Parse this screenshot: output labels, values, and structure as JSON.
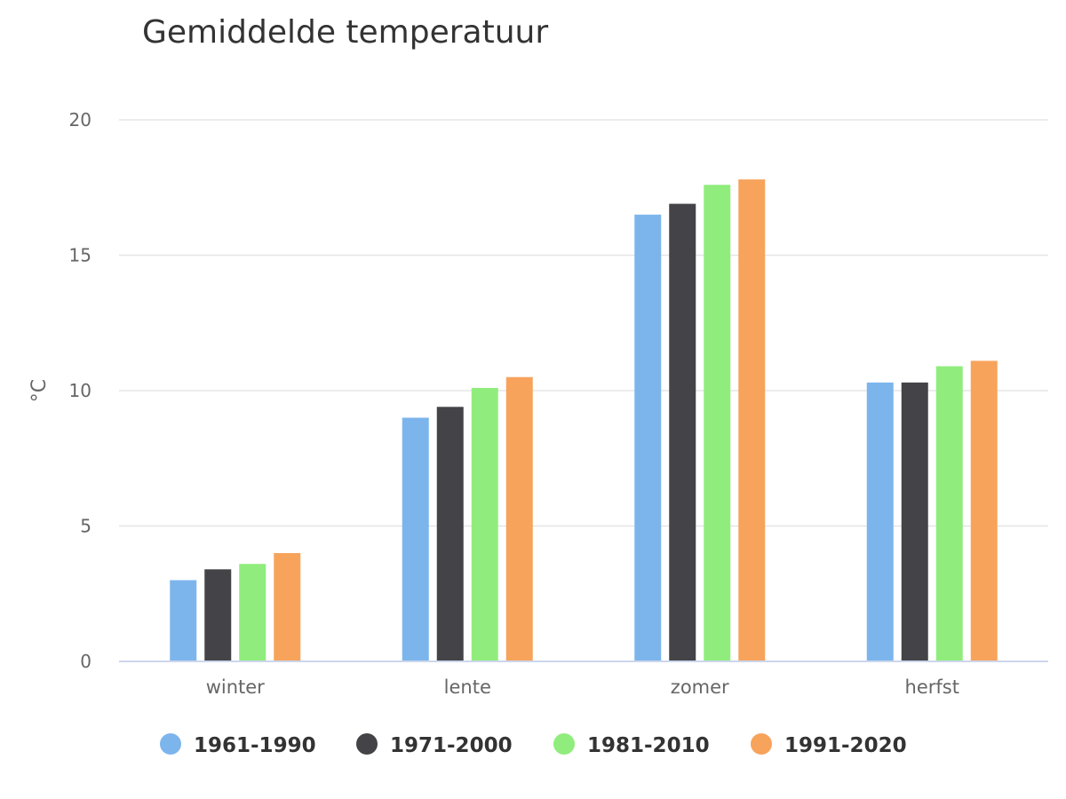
{
  "chart_data": {
    "type": "bar",
    "title": "Gemiddelde temperatuur",
    "ylabel": "°C",
    "xlabel": "",
    "ylim": [
      0,
      20
    ],
    "yticks": [
      0,
      5,
      10,
      15,
      20
    ],
    "grid": true,
    "legend_position": "bottom",
    "categories": [
      "winter",
      "lente",
      "zomer",
      "herfst"
    ],
    "series": [
      {
        "name": "1961-1990",
        "color": "#7cb5ec",
        "values": [
          3.0,
          9.0,
          16.5,
          10.3
        ]
      },
      {
        "name": "1971-2000",
        "color": "#434348",
        "values": [
          3.4,
          9.4,
          16.9,
          10.3
        ]
      },
      {
        "name": "1981-2010",
        "color": "#90ed7d",
        "values": [
          3.6,
          10.1,
          17.6,
          10.9
        ]
      },
      {
        "name": "1991-2020",
        "color": "#f7a35c",
        "values": [
          4.0,
          10.5,
          17.8,
          11.1
        ]
      }
    ]
  }
}
